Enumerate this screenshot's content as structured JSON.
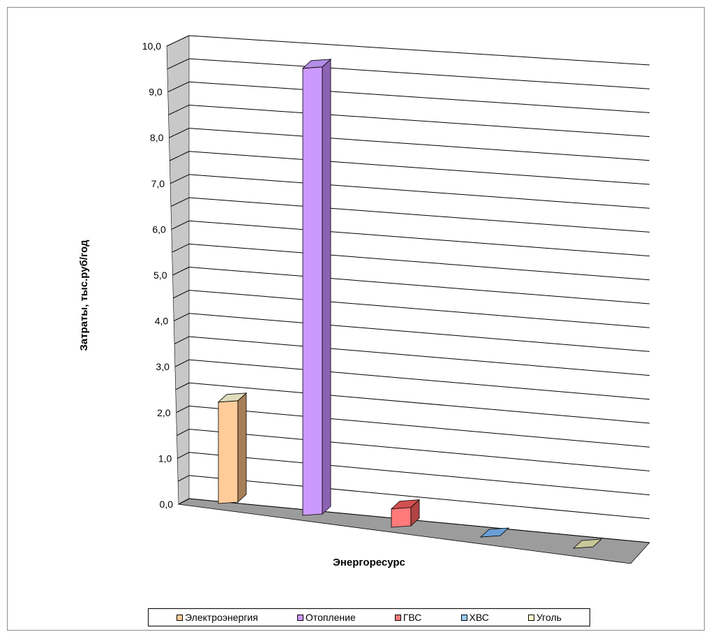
{
  "chart_data": {
    "type": "bar",
    "ylabel": "Затраты, тыс.руб/год",
    "xlabel": "Энергоресурс",
    "ylim": [
      0,
      10
    ],
    "yticks": [
      "0,0",
      "1,0",
      "2,0",
      "3,0",
      "4,0",
      "5,0",
      "6,0",
      "7,0",
      "8,0",
      "9,0",
      "10,0"
    ],
    "grid": true,
    "legend_position": "bottom",
    "series": [
      {
        "name": "Электроэнергия",
        "value": 2.2,
        "color": "#ffcc99",
        "side": "#a67e57",
        "top": "#dedcbc"
      },
      {
        "name": "Отопление",
        "value": 9.7,
        "color": "#cc99ff",
        "side": "#8c63b3",
        "top": "#b38de6"
      },
      {
        "name": "ГВС",
        "value": 0.4,
        "color": "#ff7a7a",
        "side": "#b04444",
        "top": "#d24f4f"
      },
      {
        "name": "ХВС",
        "value": 0.0,
        "color": "#99ccff",
        "side": "#6a8fb6",
        "top": "#6a9fd6"
      },
      {
        "name": "Уголь",
        "value": 0.0,
        "color": "#ffffcc",
        "side": "#b3b38a",
        "top": "#c9c79a"
      }
    ]
  }
}
